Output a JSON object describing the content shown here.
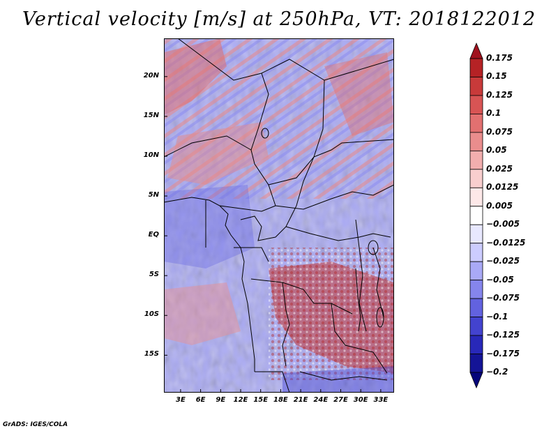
{
  "title": "Vertical velocity [m/s] at 250hPa, VT: 2018122012",
  "credit": "GrADS: IGES/COLA",
  "map": {
    "variable": "Vertical velocity",
    "units": "m/s",
    "level": "250hPa",
    "valid_time": "2018122012",
    "lat_labels": [
      "20N",
      "15N",
      "10N",
      "5N",
      "EQ",
      "5S",
      "10S",
      "15S"
    ],
    "lon_labels": [
      "3E",
      "6E",
      "9E",
      "12E",
      "15E",
      "18E",
      "21E",
      "24E",
      "27E",
      "30E",
      "33E"
    ],
    "lat_values": [
      20,
      15,
      10,
      5,
      0,
      -5,
      -10,
      -15
    ],
    "lon_values": [
      3,
      6,
      9,
      12,
      15,
      18,
      21,
      24,
      27,
      30,
      33
    ],
    "lon_range": [
      0.5,
      35
    ],
    "lat_range": [
      -19.7,
      24.8
    ]
  },
  "colorbar": {
    "labels": [
      "0.175",
      "0.15",
      "0.125",
      "0.1",
      "0.075",
      "0.05",
      "0.025",
      "0.0125",
      "0.005",
      "−0.005",
      "−0.0125",
      "−0.025",
      "−0.05",
      "−0.075",
      "−0.1",
      "−0.125",
      "−0.175",
      "−0.2"
    ],
    "colors": [
      "#a0121e",
      "#b52225",
      "#c83a3a",
      "#d85454",
      "#e27070",
      "#ea8d8d",
      "#f2aeae",
      "#f8cece",
      "#fde8e8",
      "#ffffff",
      "#e8e8ff",
      "#ccccff",
      "#a9a9f6",
      "#8585ec",
      "#6262df",
      "#4343cf",
      "#2828b9",
      "#141496",
      "#05057a"
    ]
  }
}
